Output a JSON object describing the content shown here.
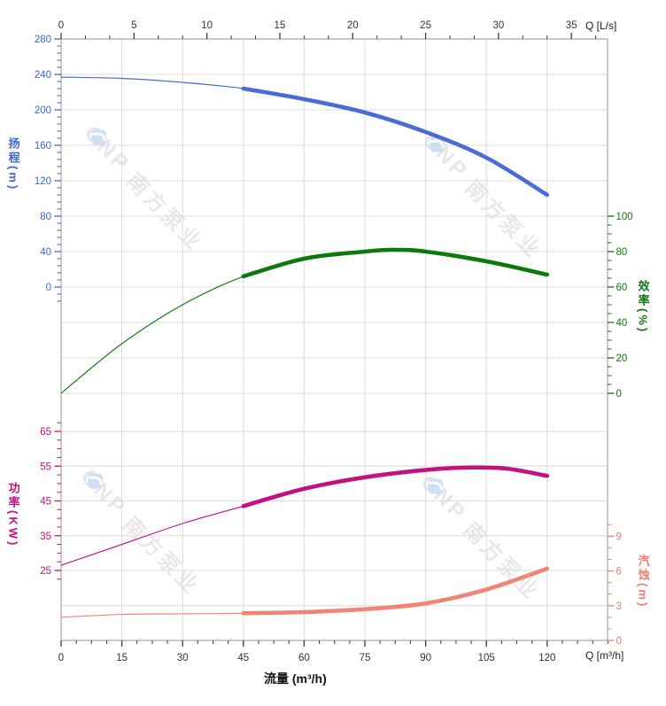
{
  "watermark": {
    "brand": "CNP",
    "brand_cn": "南方泵业",
    "text_color": "#e7e7ea",
    "gem_color": "#cfe0f4"
  },
  "axis_titles": {
    "top_unit": "Q [L/s]",
    "bottom_unit": "Q [m³/h]",
    "bottom_center": "流量 (m³/h)"
  },
  "chart_data": {
    "type": "line",
    "title": "",
    "grid": true,
    "legend": "none",
    "x_axis_bottom": {
      "label": "流量 (m³/h)",
      "unit_label": "Q [m³/h]",
      "ticks": [
        0,
        15,
        30,
        45,
        60,
        75,
        90,
        105,
        120
      ],
      "range": [
        0,
        135
      ],
      "tick_color": "#3c3c3c"
    },
    "x_axis_top": {
      "unit_label": "Q [L/s]",
      "ticks": [
        0,
        5,
        10,
        15,
        20,
        25,
        30,
        35
      ],
      "range": [
        0,
        37.5
      ],
      "tick_color": "#3c3c3c"
    },
    "y_axes": {
      "head": {
        "title": "扬程",
        "unit": "(m)",
        "side": "left",
        "color": "#4065cc",
        "ticks": [
          280,
          240,
          200,
          160,
          120,
          80,
          40,
          0
        ],
        "range": [
          0,
          280
        ]
      },
      "eff": {
        "title": "效率",
        "unit": "(%)",
        "side": "right",
        "color": "#127512",
        "ticks": [
          100,
          80,
          60,
          40,
          20,
          0
        ],
        "range": [
          0,
          100
        ]
      },
      "power": {
        "title": "功率",
        "unit": "(KW)",
        "side": "left",
        "color": "#c3117f",
        "ticks": [
          65,
          55,
          45,
          35,
          25
        ],
        "range": [
          25,
          65
        ]
      },
      "npsh": {
        "title": "汽蚀",
        "unit": "(m)",
        "side": "right",
        "color": "#f07b6f",
        "ticks": [
          9,
          6,
          3,
          0
        ],
        "range": [
          0,
          9
        ]
      }
    },
    "series": [
      {
        "name": "head-curve",
        "axis": "head",
        "color": "#4a6cd6",
        "bold_from_x": 45,
        "points": [
          [
            0,
            237
          ],
          [
            15,
            235.5
          ],
          [
            30,
            231
          ],
          [
            45,
            224
          ],
          [
            60,
            212
          ],
          [
            75,
            197
          ],
          [
            90,
            175
          ],
          [
            105,
            146
          ],
          [
            120,
            104
          ]
        ]
      },
      {
        "name": "efficiency-curve",
        "axis": "eff",
        "color": "#0d780d",
        "bold_from_x": 45,
        "points": [
          [
            0,
            0
          ],
          [
            15,
            28
          ],
          [
            30,
            50
          ],
          [
            45,
            66
          ],
          [
            60,
            76
          ],
          [
            75,
            80
          ],
          [
            82,
            81
          ],
          [
            90,
            80
          ],
          [
            105,
            74.5
          ],
          [
            120,
            67
          ]
        ]
      },
      {
        "name": "power-curve",
        "axis": "power",
        "color": "#c3117f",
        "bold_from_x": 45,
        "points": [
          [
            0,
            26.5
          ],
          [
            15,
            32.5
          ],
          [
            30,
            38.5
          ],
          [
            45,
            43.5
          ],
          [
            60,
            48.5
          ],
          [
            75,
            51.8
          ],
          [
            90,
            53.9
          ],
          [
            100,
            54.6
          ],
          [
            110,
            54.3
          ],
          [
            120,
            52.2
          ]
        ]
      },
      {
        "name": "npsh-curve",
        "axis": "npsh",
        "color": "#f08575",
        "bold_from_x": 45,
        "points": [
          [
            0,
            2.0
          ],
          [
            15,
            2.25
          ],
          [
            30,
            2.3
          ],
          [
            45,
            2.35
          ],
          [
            60,
            2.45
          ],
          [
            75,
            2.7
          ],
          [
            90,
            3.2
          ],
          [
            105,
            4.4
          ],
          [
            120,
            6.2
          ]
        ]
      }
    ]
  }
}
